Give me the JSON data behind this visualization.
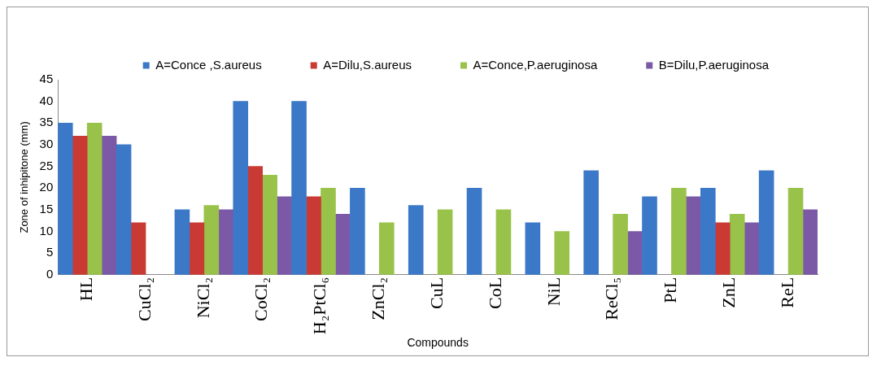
{
  "chart_data": {
    "type": "bar",
    "xlabel": "Compounds",
    "ylabel": "Zone of inhipitone (mm)",
    "categories": [
      "HL",
      "CuCl₂",
      "NiCl₂",
      "CoCl₂",
      "H₂PtCl₆",
      "ZnCl₂",
      "CuL",
      "CoL",
      "NiL",
      "ReCl₅",
      "PtL",
      "ZnL",
      "ReL"
    ],
    "series": [
      {
        "name": "A=Conce ,S.aureus",
        "color": "#3b78c8",
        "values": [
          35,
          30,
          15,
          40,
          40,
          20,
          16,
          20,
          12,
          24,
          18,
          20,
          24
        ]
      },
      {
        "name": "A=Dilu,S.aureus",
        "color": "#c93a35",
        "values": [
          32,
          12,
          12,
          25,
          18,
          null,
          null,
          null,
          null,
          null,
          null,
          12,
          null
        ]
      },
      {
        "name": "A=Conce,P.aeruginosa",
        "color": "#99c24a",
        "values": [
          35,
          null,
          16,
          23,
          20,
          12,
          15,
          15,
          10,
          14,
          20,
          14,
          20
        ]
      },
      {
        "name": "B=Dilu,P.aeruginosa",
        "color": "#7b59a6",
        "values": [
          32,
          null,
          15,
          18,
          14,
          null,
          null,
          null,
          null,
          10,
          18,
          12,
          15
        ]
      }
    ],
    "ylim": [
      0,
      45
    ],
    "yticks": [
      0,
      5,
      10,
      15,
      20,
      25,
      30,
      35,
      40,
      45
    ],
    "grid": false,
    "legend": "top right"
  }
}
